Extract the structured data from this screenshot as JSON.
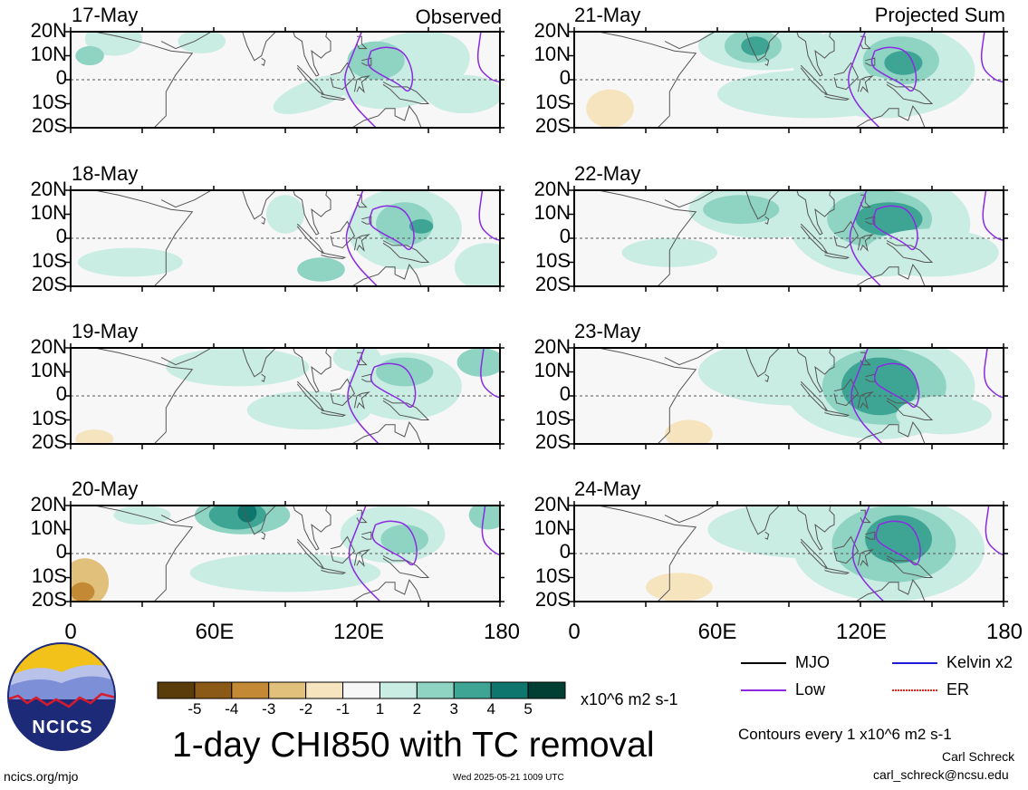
{
  "figure": {
    "title": "1-day CHI850 with TC removal",
    "units": "x10^6 m2 s-1",
    "contour_note": "Contours every 1 x10^6 m2 s-1",
    "author": "Carl Schreck",
    "email": "carl_schreck@ncsu.edu",
    "site": "ncics.org/mjo",
    "timestamp": "Wed 2025-05-21 1009 UTC",
    "logo_text": "NCICS"
  },
  "columns": {
    "left_tag": "Observed",
    "right_tag": "Projected Sum"
  },
  "panels": [
    {
      "date": "17-May",
      "column": "left",
      "row": 0
    },
    {
      "date": "18-May",
      "column": "left",
      "row": 1
    },
    {
      "date": "19-May",
      "column": "left",
      "row": 2
    },
    {
      "date": "20-May",
      "column": "left",
      "row": 3
    },
    {
      "date": "21-May",
      "column": "right",
      "row": 0
    },
    {
      "date": "22-May",
      "column": "right",
      "row": 1
    },
    {
      "date": "23-May",
      "column": "right",
      "row": 2
    },
    {
      "date": "24-May",
      "column": "right",
      "row": 3
    }
  ],
  "lat_labels": [
    "20N",
    "10N",
    "0",
    "10S",
    "20S"
  ],
  "lon_labels": [
    "0",
    "60E",
    "120E",
    "180"
  ],
  "colorbar": {
    "labels": [
      "-5",
      "-4",
      "-3",
      "-2",
      "-1",
      "1",
      "2",
      "3",
      "4",
      "5"
    ],
    "colors": [
      "#5a3b0a",
      "#8a5a16",
      "#c38935",
      "#e0c07a",
      "#f5e4bd",
      "#f7f7f7",
      "#c9ece3",
      "#8fd3c3",
      "#3ea595",
      "#0f766e",
      "#013f35"
    ]
  },
  "legend": {
    "mjo": {
      "label": "MJO",
      "color": "#000000"
    },
    "kelvin": {
      "label": "Kelvin x2",
      "color": "#1d1dd6"
    },
    "low": {
      "label": "Low",
      "color": "#8a2be2"
    },
    "er": {
      "label": "ER",
      "color": "#e0201b"
    }
  }
}
